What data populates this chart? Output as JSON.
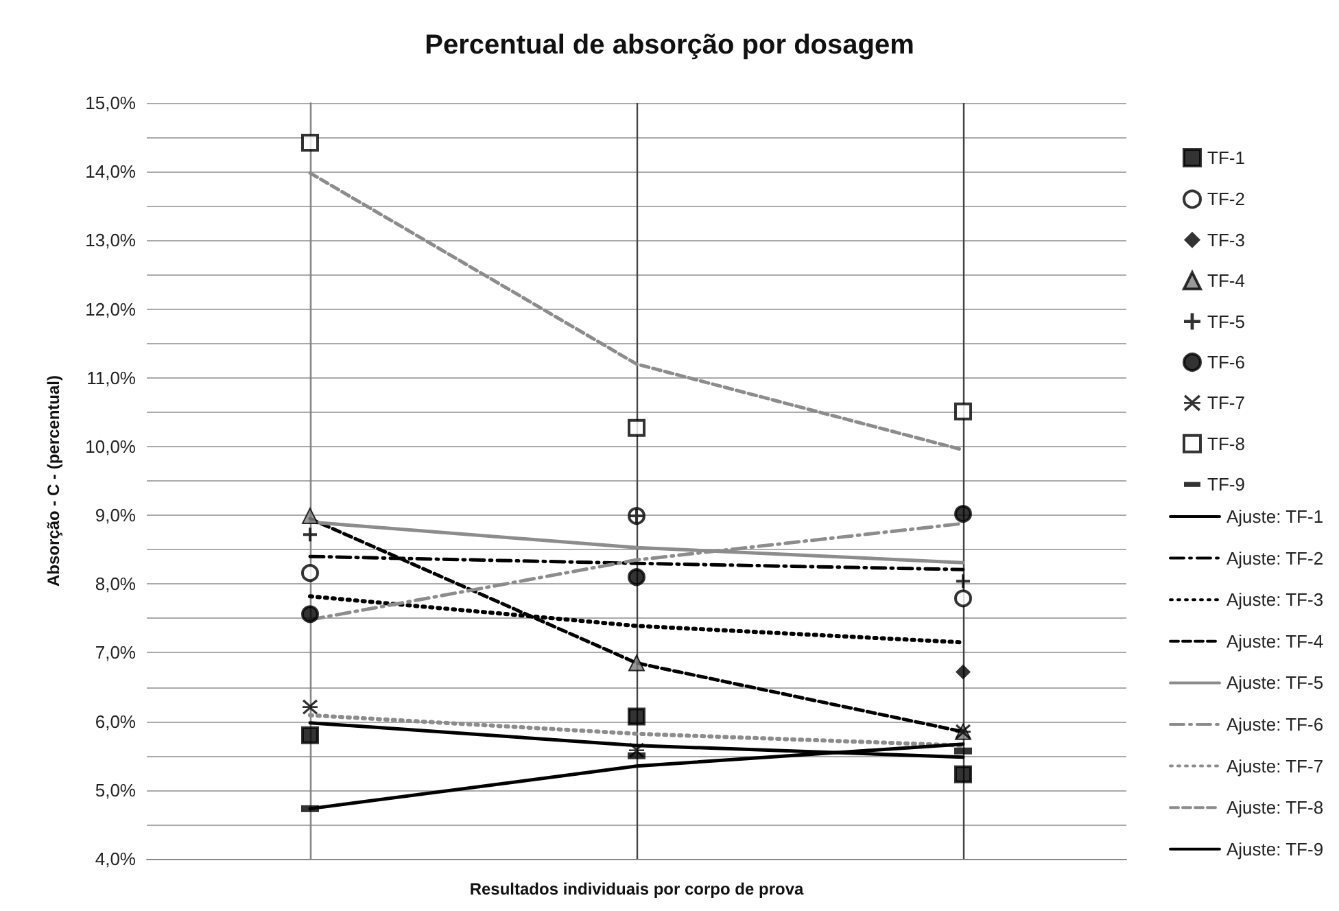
{
  "chart_data": {
    "type": "scatter",
    "title": "Percentual de absorção por dosagem",
    "xlabel": "Resultados individuais por corpo de prova",
    "ylabel": "Absorção - C - (percentual)",
    "categories": [
      null,
      null,
      null
    ],
    "ylim": [
      4,
      15
    ],
    "yticks": [
      {
        "value": 4,
        "label": "4,0%"
      },
      {
        "value": 4.5,
        "label": null
      },
      {
        "value": 5,
        "label": "5,0%"
      },
      {
        "value": 5.5,
        "label": null
      },
      {
        "value": 6,
        "label": "6,0%"
      },
      {
        "value": 6.5,
        "label": null
      },
      {
        "value": 7,
        "label": "7,0%"
      },
      {
        "value": 7.5,
        "label": null
      },
      {
        "value": 8,
        "label": "8,0%"
      },
      {
        "value": 8.5,
        "label": null
      },
      {
        "value": 9,
        "label": "9,0%"
      },
      {
        "value": 9.5,
        "label": null
      },
      {
        "value": 10,
        "label": "10,0%"
      },
      {
        "value": 10.5,
        "label": null
      },
      {
        "value": 11,
        "label": "11,0%"
      },
      {
        "value": 11.5,
        "label": null
      },
      {
        "value": 12,
        "label": "12,0%"
      },
      {
        "value": 12.5,
        "label": null
      },
      {
        "value": 13,
        "label": "13,0%"
      },
      {
        "value": 13.5,
        "label": null
      },
      {
        "value": 14,
        "label": "14,0%"
      },
      {
        "value": 14.5,
        "label": null
      },
      {
        "value": 15,
        "label": "15,0%"
      }
    ],
    "tick_labels": "y",
    "grid": true,
    "legend": "right",
    "series": [
      {
        "name": "TF-1",
        "marker": "square",
        "color": "#000000",
        "values": [
          5.8,
          6.07,
          5.23
        ]
      },
      {
        "name": "TF-2",
        "marker": "circle",
        "color": "#ffffff",
        "values": [
          8.16,
          8.99,
          7.79
        ]
      },
      {
        "name": "TF-3",
        "marker": "diamond",
        "color": "#000000",
        "values": [
          null,
          null,
          6.72
        ]
      },
      {
        "name": "TF-4",
        "marker": "triangle",
        "color": "#808080",
        "values": [
          8.99,
          6.85,
          5.85
        ]
      },
      {
        "name": "TF-5",
        "marker": "cross",
        "color": "#000000",
        "values": [
          8.72,
          8.99,
          8.04
        ]
      },
      {
        "name": "TF-6",
        "marker": "circle",
        "color": "#000000",
        "values": [
          7.56,
          8.1,
          9.02
        ]
      },
      {
        "name": "TF-7",
        "marker": "star",
        "color": "#000000",
        "values": [
          6.21,
          5.58,
          5.85
        ]
      },
      {
        "name": "TF-8",
        "marker": "square",
        "color": "#ffffff",
        "values": [
          14.42,
          10.27,
          10.51
        ]
      },
      {
        "name": "TF-9",
        "color": "#000000",
        "values": [
          4.73,
          5.5,
          5.57
        ]
      },
      {
        "name": "Ajuste: TF-1",
        "type": "line",
        "marker": "none",
        "line_style": "solid",
        "color": "#000000",
        "values": [
          5.98,
          5.65,
          5.48
        ]
      },
      {
        "name": "Ajuste: TF-2",
        "type": "line",
        "marker": "none",
        "line_style": "dashdot",
        "color": "#000000",
        "values": [
          8.4,
          8.3,
          8.21
        ]
      },
      {
        "name": "Ajuste: TF-3",
        "type": "line",
        "marker": "none",
        "line_style": "dotted",
        "color": "#000000",
        "values": [
          7.82,
          7.39,
          7.15
        ]
      },
      {
        "name": "Ajuste: TF-4",
        "type": "line",
        "marker": "none",
        "line_style": "dashed",
        "color": "#000000",
        "values": [
          8.95,
          6.85,
          5.85
        ]
      },
      {
        "name": "Ajuste: TF-5",
        "type": "line",
        "marker": "none",
        "line_style": "solid",
        "color": "#8c8c8c",
        "values": [
          8.9,
          8.53,
          8.31
        ]
      },
      {
        "name": "Ajuste: TF-6",
        "type": "line",
        "marker": "none",
        "line_style": "dashdot",
        "color": "#8c8c8c",
        "values": [
          7.48,
          8.35,
          8.88
        ]
      },
      {
        "name": "Ajuste: TF-7",
        "type": "line",
        "marker": "none",
        "line_style": "dotted",
        "color": "#8c8c8c",
        "values": [
          6.09,
          5.82,
          5.65
        ]
      },
      {
        "name": "Ajuste: TF-8",
        "type": "line",
        "marker": "none",
        "line_style": "dashed",
        "color": "#8c8c8c",
        "values": [
          13.98,
          11.2,
          9.95
        ]
      },
      {
        "name": "Ajuste: TF-9",
        "type": "line",
        "marker": "none",
        "line_style": "solid",
        "color": "#000000",
        "values": [
          4.73,
          5.35,
          5.67
        ]
      }
    ]
  }
}
